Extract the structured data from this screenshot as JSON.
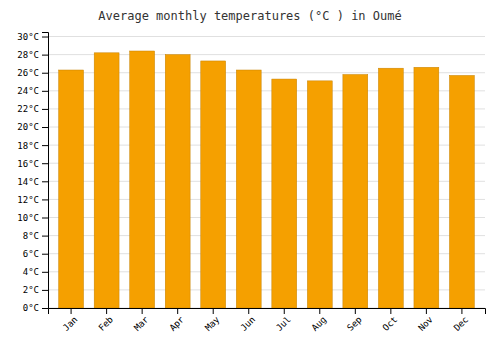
{
  "chart_data": {
    "type": "bar",
    "title": "Average monthly temperatures (°C ) in Oumé",
    "categories": [
      "Jan",
      "Feb",
      "Mar",
      "Apr",
      "May",
      "Jun",
      "Jul",
      "Aug",
      "Sep",
      "Oct",
      "Nov",
      "Dec"
    ],
    "values": [
      26.3,
      28.2,
      28.4,
      28.0,
      27.3,
      26.3,
      25.3,
      25.1,
      25.8,
      26.5,
      26.6,
      25.7
    ],
    "color": "#F5A000",
    "ylim": [
      0,
      30.5
    ],
    "yticks": [
      {
        "value": 0,
        "label": "0°C"
      },
      {
        "value": 2,
        "label": "2°C"
      },
      {
        "value": 4,
        "label": "4°C"
      },
      {
        "value": 6,
        "label": "6°C"
      },
      {
        "value": 8,
        "label": "8°C"
      },
      {
        "value": 10,
        "label": "10°C"
      },
      {
        "value": 12,
        "label": "12°C"
      },
      {
        "value": 14,
        "label": "14°C"
      },
      {
        "value": 16,
        "label": "16°C"
      },
      {
        "value": 18,
        "label": "18°C"
      },
      {
        "value": 20,
        "label": "20°C"
      },
      {
        "value": 22,
        "label": "22°C"
      },
      {
        "value": 24,
        "label": "24°C"
      },
      {
        "value": 26,
        "label": "26°C"
      },
      {
        "value": 28,
        "label": "28°C"
      },
      {
        "value": 30,
        "label": "30°C"
      }
    ],
    "grid": true
  }
}
